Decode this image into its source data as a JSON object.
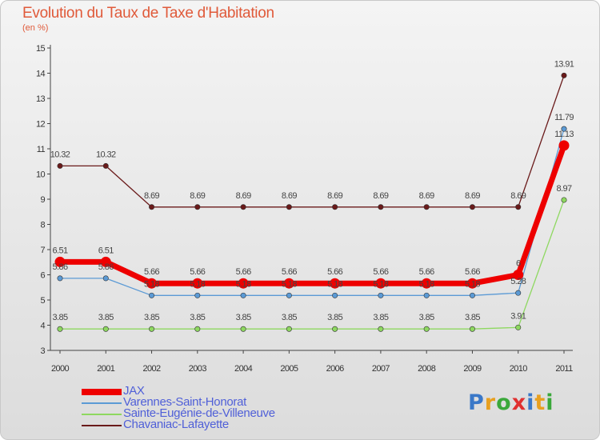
{
  "header": {
    "title": "Evolution du Taux de Taxe d'Habitation",
    "subtitle": "(en %)"
  },
  "logo": {
    "letters": [
      "P",
      "r",
      "o",
      "x",
      "i",
      "t",
      "i"
    ],
    "colors": [
      "#3a78c8",
      "#e8a020",
      "#3aa83a",
      "#e03030",
      "#3a78c8",
      "#e8a020",
      "#3aa83a"
    ]
  },
  "chart_data": {
    "type": "line",
    "title": "Evolution du Taux de Taxe d'Habitation",
    "subtitle": "(en %)",
    "x": [
      "2000",
      "2001",
      "2002",
      "2003",
      "2004",
      "2005",
      "2006",
      "2007",
      "2008",
      "2009",
      "2010",
      "2011"
    ],
    "ylim": [
      3,
      15
    ],
    "yticks": [
      3,
      4,
      5,
      6,
      7,
      8,
      9,
      10,
      11,
      12,
      13,
      14,
      15
    ],
    "grid": false,
    "legend_position": "bottom-left",
    "series": [
      {
        "name": "JAX",
        "color": "#ee0000",
        "values": [
          6.51,
          6.51,
          5.66,
          5.66,
          5.66,
          5.66,
          5.66,
          5.66,
          5.66,
          5.66,
          6.0,
          11.13
        ],
        "labels": [
          "6.51",
          "6.51",
          "5.66",
          "5.66",
          "5.66",
          "5.66",
          "5.66",
          "5.66",
          "5.66",
          "5.66",
          "6",
          "11.13"
        ]
      },
      {
        "name": "Varennes-Saint-Honorat",
        "color": "#5b9ad5",
        "values": [
          5.86,
          5.86,
          5.18,
          5.18,
          5.18,
          5.18,
          5.18,
          5.18,
          5.18,
          5.18,
          5.28,
          11.79
        ],
        "labels": [
          "5.86",
          "5.86",
          "5.18",
          "5.18",
          "5.18",
          "5.18",
          "5.18",
          "5.18",
          "5.18",
          "5.18",
          "5.28",
          "11.79"
        ]
      },
      {
        "name": "Sainte-Eugénie-de-Villeneuve",
        "color": "#8ed860",
        "values": [
          3.85,
          3.85,
          3.85,
          3.85,
          3.85,
          3.85,
          3.85,
          3.85,
          3.85,
          3.85,
          3.91,
          8.97
        ],
        "labels": [
          "3.85",
          "3.85",
          "3.85",
          "3.85",
          "3.85",
          "3.85",
          "3.85",
          "3.85",
          "3.85",
          "3.85",
          "3.91",
          "8.97"
        ]
      },
      {
        "name": "Chavaniac-Lafayette",
        "color": "#6a1a1a",
        "values": [
          10.32,
          10.32,
          8.69,
          8.69,
          8.69,
          8.69,
          8.69,
          8.69,
          8.69,
          8.69,
          8.69,
          13.91
        ],
        "labels": [
          "10.32",
          "10.32",
          "8.69",
          "8.69",
          "8.69",
          "8.69",
          "8.69",
          "8.69",
          "8.69",
          "8.69",
          "8.69",
          "13.91"
        ]
      }
    ]
  }
}
